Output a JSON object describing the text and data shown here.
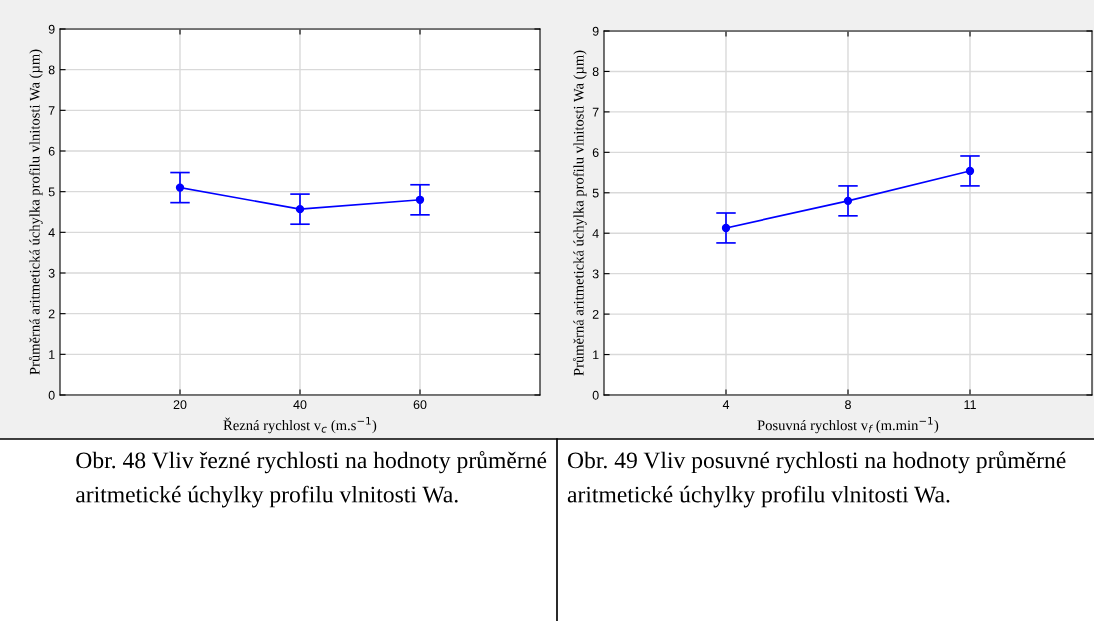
{
  "chart_data": [
    {
      "type": "line",
      "categories": [
        "20",
        "40",
        "60"
      ],
      "xlabel": "Řezná rychlost v$_{c}$ (m.s$^{−1}$)",
      "ylabel": "Průměrná aritmetická úchylka profilu vlnitosti Wa (µm)",
      "ylim": [
        0,
        9
      ],
      "yticks": [
        0,
        1,
        2,
        3,
        4,
        5,
        6,
        7,
        8,
        9
      ],
      "grid": true,
      "marker": "circle",
      "line_style": "solid",
      "series": [
        {
          "color": "#0000ff",
          "values": [
            5.1,
            4.57,
            4.8
          ],
          "errors": [
            0.37,
            0.37,
            0.37
          ]
        }
      ],
      "annotations": [
        "Obr. 48 Vliv řezné rychlosti na hodnoty průměrné aritmetické úchylky profilu vlnitosti Wa."
      ]
    },
    {
      "type": "line",
      "categories": [
        "4",
        "8",
        "11"
      ],
      "xlabel": "Posuvná rychlost v$_{f}$ (m.min$^{−1}$)",
      "ylabel": "Průměrná aritmetická úchylka profilu vlnitosti Wa (µm)",
      "ylim": [
        0,
        9
      ],
      "yticks": [
        0,
        1,
        2,
        3,
        4,
        5,
        6,
        7,
        8,
        9
      ],
      "grid": true,
      "marker": "circle",
      "line_style": "solid",
      "series": [
        {
          "color": "#0000ff",
          "values": [
            4.13,
            4.8,
            5.54
          ],
          "errors": [
            0.37,
            0.37,
            0.37
          ]
        }
      ],
      "annotations": [
        "Obr. 49 Vliv posuvné rychlosti na hodnoty průměrné aritmetické úchylky profilu vlnitosti Wa."
      ]
    }
  ]
}
